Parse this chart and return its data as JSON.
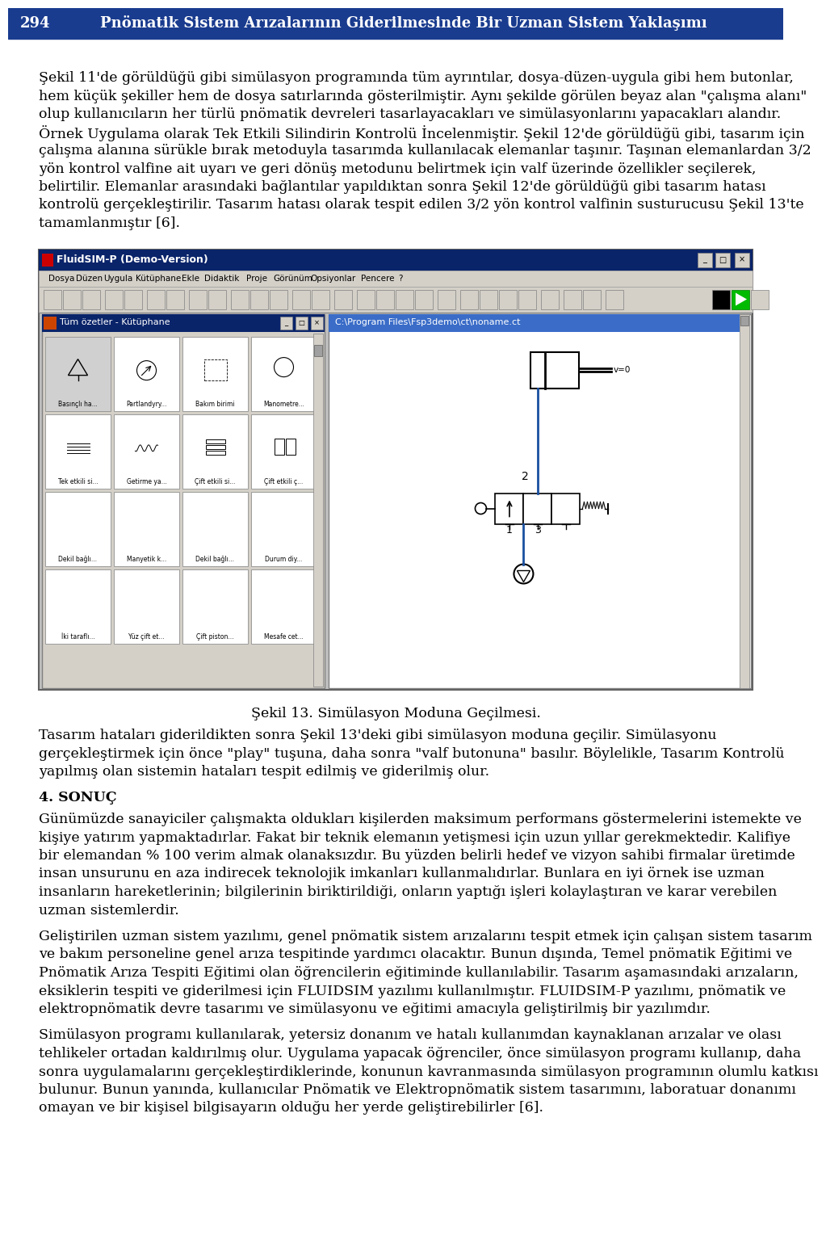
{
  "header_bg": "#1a3c8f",
  "header_text_color": "#ffffff",
  "page_number": "294",
  "header_title": "Pnömatik Sistem Arızalarının Giderilmesinde Bir Uzman Sistem Yaklaşımı",
  "body_bg": "#ffffff",
  "body_text_color": "#000000",
  "paragraph1_lines": [
    "Şekil 11'de görüldüğü gibi simülasyon programında tüm ayrıntılar, dosya-düzen-uygula gibi hem butonlar,",
    "hem küçük şekiller hem de dosya satırlarında gösterilmiştir. Aynı şekilde görülen beyaz alan \"çalışma alanı\"",
    "olup kullanıcıların her türlü pnömatik devreleri tasarlayacakları ve simülasyonlarını yapacakları alandır.",
    "Örnek Uygulama olarak Tek Etkili Silindirin Kontrolü İncelenmiştir. Şekil 12'de görüldüğü gibi, tasarım için",
    "çalışma alanına sürükle bırak metoduyla tasarımda kullanılacak elemanlar taşınır. Taşınan elemanlardan 3/2",
    "yön kontrol valfine ait uyarı ve geri dönüş metodunu belirtmek için valf üzerinde özellikler seçilerek,",
    "belirtilir. Elemanlar arasındaki bağlantılar yapıldıktan sonra Şekil 12'de görüldüğü gibi tasarım hatası",
    "kontrolü gerçekleştirilir. Tasarım hatası olarak tespit edilen 3/2 yön kontrol valfinin susturucusu Şekil 13'te",
    "tamamlanmıştır [6]."
  ],
  "figure_caption": "Şekil 13. Simülasyon Moduna Geçilmesi.",
  "paragraph2_lines": [
    "Tasarım hataları giderildikten sonra Şekil 13'deki gibi simülasyon moduna geçilir. Simülasyonu",
    "gerçekleştirmek için önce \"play\" tuşuna, daha sonra \"valf butonuna\" basılır. Böylelikle, Tasarım Kontrolü",
    "yapılmış olan sistemin hataları tespit edilmiş ve giderilmiş olur."
  ],
  "section4_title": "4. SONUÇ",
  "paragraph3_lines": [
    "Günümüzde sanayiciler çalışmakta oldukları kişilerden maksimum performans göstermelerini istemekte ve",
    "kişiye yatırım yapmaktadırlar. Fakat bir teknik elemanın yetişmesi için uzun yıllar gerekmektedir. Kalifiye",
    "bir elemandan % 100 verim almak olanaksızdır. Bu yüzden belirli hedef ve vizyon sahibi firmalar üretimde",
    "insan unsurunu en aza indirecek teknolojik imkanları kullanmalıdırlar. Bunlara en iyi örnek ise uzman",
    "insanların hareketlerinin; bilgilerinin biriktirildiği, onların yaptığı işleri kolaylaştıran ve karar verebilen",
    "uzman sistemlerdir."
  ],
  "paragraph4_lines": [
    "Geliştirilen uzman sistem yazılımı, genel pnömatik sistem arızalarını tespit etmek için çalışan sistem tasarım",
    "ve bakım personeline genel arıza tespitinde yardımcı olacaktır. Bunun dışında, Temel pnömatik Eğitimi ve",
    "Pnömatik Arıza Tespiti Eğitimi olan öğrencilerin eğitiminde kullanılabilir. Tasarım aşamasındaki arızaların,",
    "eksiklerin tespiti ve giderilmesi için FLUIDSIM yazılımı kullanılmıştır. FLUIDSIM-P yazılımı, pnömatik ve",
    "elektropnömatik devre tasarımı ve simülasyonu ve eğitimi amacıyla geliştirilmiş bir yazılımdır."
  ],
  "paragraph5_lines": [
    "Simülasyon programı kullanılarak, yetersiz donanım ve hatalı kullanımdan kaynaklanan arızalar ve olası",
    "tehlikeler ortadan kaldırılmış olur. Uygulama yapacak öğrenciler, önce simülasyon programı kullanıp, daha",
    "sonra uygulamalarını gerçekleştirdiklerinde, konunun kavranmasında simülasyon programının olumlu katkısı",
    "bulunur. Bunun yanında, kullanıcılar Pnömatik ve Elektropnömatik sistem tasarımını, laboratuar donanımı",
    "omayan ve bir kişisel bilgisayarın olduğu her yerde geliştirebilirler [6]."
  ],
  "menu_items": [
    "Dosya",
    "Düzen",
    "Uygula",
    "Kütüphane",
    "Ekle",
    "Didaktik",
    "Proje",
    "Görünüm",
    "Opsiyonlar",
    "Pencere",
    "?"
  ],
  "lib_labels_row1": [
    "Basınçlı ha...",
    "Partlandyry...",
    "Bakım birimi",
    "Manometre..."
  ],
  "lib_labels_row2": [
    "Tek etkili si...",
    "Getirme ya...",
    "Çift etkili si...",
    "Çift etkili ç..."
  ],
  "lib_labels_row3": [
    "Dekil bağlı...",
    "Manyetik k...",
    "Dekil bağlı...",
    "Durum diy..."
  ],
  "lib_labels_row4": [
    "İki taraflı...",
    "Yüz çift et...",
    "Çift piston...",
    "Mesafe cet..."
  ]
}
